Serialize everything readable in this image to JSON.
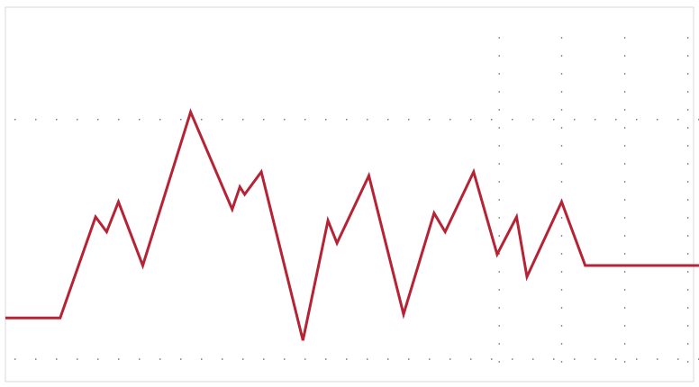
{
  "chart_data": {
    "type": "line",
    "title": "",
    "xlabel": "",
    "ylabel": "",
    "grid": true,
    "colors": {
      "series_line": "#b52334",
      "grid_dots": "#6f6f6f",
      "frame": "#d8d8d8",
      "background": "#ffffff"
    },
    "xlim": [
      0,
      100
    ],
    "ylim": [
      0,
      100
    ],
    "hgrid_y": [
      70,
      6
    ],
    "vgrid_x": [
      71.2,
      80.2,
      89.3,
      98.4
    ],
    "vgrid_y_range": [
      6,
      92
    ],
    "series": [
      {
        "x": [
          0,
          7.9,
          13.0,
          14.6,
          16.3,
          19.8,
          26.7,
          32.7,
          33.8,
          34.5,
          36.9,
          42.9,
          46.5,
          47.8,
          52.4,
          57.4,
          61.8,
          63.4,
          67.5,
          70.9,
          73.7,
          75.2,
          80.2,
          83.6,
          100
        ],
        "y": [
          17,
          17,
          44,
          40,
          48,
          31,
          72,
          46,
          52,
          50,
          56,
          11,
          43,
          37,
          55,
          18,
          45,
          40,
          56,
          34,
          44,
          28,
          48,
          31,
          31
        ]
      }
    ]
  }
}
